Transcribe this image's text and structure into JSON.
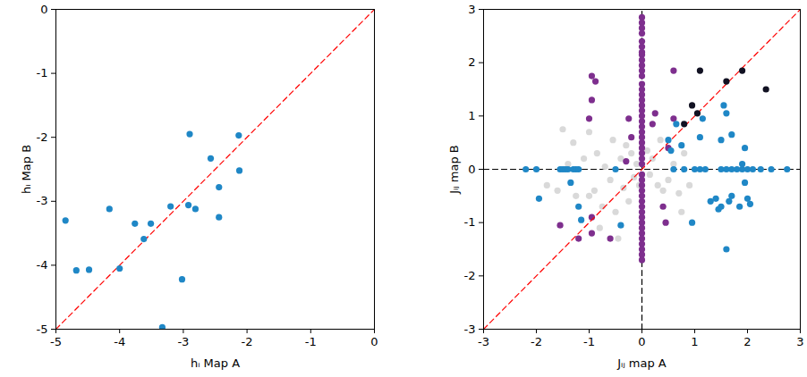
{
  "chart_data": [
    {
      "type": "scatter",
      "xlabel": "hᵢ Map A",
      "ylabel": "hᵢ Map B",
      "xlim": [
        -5,
        0
      ],
      "ylim": [
        -5,
        0
      ],
      "xticks": [
        -5,
        -4,
        -3,
        -2,
        -1,
        0
      ],
      "yticks": [
        -5,
        -4,
        -3,
        -2,
        -1,
        0
      ],
      "series": [
        {
          "type": "line",
          "color": "#ff0000",
          "line_style": "dashed",
          "x": [
            -5,
            0
          ],
          "y": [
            -5,
            0
          ]
        },
        {
          "type": "scatter",
          "color": "#1f87c6",
          "marker": "circle",
          "x": [
            -4.85,
            -4.68,
            -4.48,
            -4.16,
            -4.0,
            -3.76,
            -3.62,
            -3.51,
            -3.33,
            -3.2,
            -3.02,
            -2.92,
            -2.9,
            -2.81,
            -2.57,
            -2.44,
            -2.44,
            -2.13,
            -2.12
          ],
          "y": [
            -3.3,
            -4.08,
            -4.07,
            -3.12,
            -4.05,
            -3.35,
            -3.59,
            -3.35,
            -4.97,
            -3.08,
            -4.22,
            -3.06,
            -1.95,
            -3.12,
            -2.33,
            -2.78,
            -3.25,
            -1.97,
            -2.52
          ]
        }
      ]
    },
    {
      "type": "scatter",
      "xlabel": "Jᵢⱼ map A",
      "ylabel": "Jᵢⱼ map B",
      "xlim": [
        -3,
        3
      ],
      "ylim": [
        -3,
        3
      ],
      "xticks": [
        -3,
        -2,
        -1,
        0,
        1,
        2,
        3
      ],
      "yticks": [
        -3,
        -2,
        -1,
        0,
        1,
        2,
        3
      ],
      "series": [
        {
          "type": "line",
          "color": "#000000",
          "line_style": "dashed",
          "x": [
            -3,
            3
          ],
          "y": [
            0,
            0
          ]
        },
        {
          "type": "line",
          "color": "#000000",
          "line_style": "dashed",
          "x": [
            0,
            0
          ],
          "y": [
            -3,
            3
          ]
        },
        {
          "type": "scatter",
          "color": "#d9d9d9",
          "marker": "circle",
          "x": [
            -1.5,
            -1.6,
            -1.3,
            -1.25,
            -1.1,
            -1.0,
            -0.9,
            -0.85,
            -0.75,
            -0.7,
            -0.6,
            -0.55,
            -0.5,
            -0.4,
            -0.35,
            -0.3,
            -0.25,
            -0.2,
            -0.15,
            -0.1,
            -0.05,
            0.1,
            0.15,
            0.2,
            0.3,
            0.35,
            0.4,
            0.5,
            0.6,
            0.7,
            0.8,
            0.9,
            -1.4,
            -1.8,
            -0.8,
            -1.0,
            -0.45,
            0.75
          ],
          "y": [
            0.75,
            -0.4,
            0.5,
            -0.5,
            0.2,
            -0.5,
            -0.4,
            0.3,
            -0.7,
            0.05,
            -0.2,
            0.55,
            -0.8,
            0.2,
            -0.35,
            0.45,
            -0.6,
            0.3,
            -0.15,
            0.1,
            -0.3,
            0.35,
            -0.1,
            0.2,
            -0.3,
            0.55,
            -0.4,
            -0.2,
            0.1,
            -0.45,
            0.3,
            -0.3,
            0.1,
            -0.3,
            -1.1,
            0.7,
            -1.3,
            -0.8
          ]
        },
        {
          "type": "scatter",
          "color": "#7e2f8e",
          "marker": "circle",
          "x": [
            0,
            0,
            0,
            0,
            0,
            0,
            0,
            0,
            0,
            0,
            0,
            0,
            0,
            0,
            0,
            0,
            0,
            0,
            0,
            0,
            0,
            0,
            0,
            0,
            0,
            0,
            0,
            0,
            0,
            0,
            0,
            0,
            0,
            0,
            0,
            0,
            0,
            0,
            0,
            0,
            0,
            0,
            0,
            0,
            0,
            -0.95,
            -0.88,
            -0.95,
            -1.0,
            -0.95,
            -0.95,
            -0.6,
            -1.55,
            -1.2,
            -0.25,
            -0.2,
            -0.3,
            0.4,
            0.45,
            0.25,
            0.2,
            0.6,
            0.6,
            0.5
          ],
          "y": [
            2.85,
            2.75,
            2.65,
            2.55,
            2.4,
            2.3,
            2.2,
            2.15,
            2.05,
            1.95,
            1.85,
            1.75,
            1.6,
            1.5,
            1.4,
            1.3,
            1.2,
            1.1,
            1.0,
            0.9,
            0.8,
            0.7,
            0.6,
            0.5,
            0.4,
            0.3,
            0.2,
            0.1,
            -0.1,
            -0.2,
            -0.3,
            -0.4,
            -0.5,
            -0.6,
            -0.7,
            -0.8,
            -0.9,
            -1.0,
            -1.1,
            -1.2,
            -1.3,
            -1.4,
            -1.5,
            -1.6,
            -1.7,
            1.75,
            1.65,
            1.3,
            0.95,
            -0.9,
            -1.2,
            -1.3,
            -1.05,
            -1.3,
            0.95,
            0.6,
            0.15,
            -0.7,
            -1.0,
            1.05,
            0.85,
            1.85,
            0.95,
            0.4
          ]
        },
        {
          "type": "line",
          "color": "#ff0000",
          "line_style": "dashed",
          "x": [
            -3,
            3
          ],
          "y": [
            -3,
            3
          ]
        },
        {
          "type": "scatter",
          "color": "#1f87c6",
          "marker": "circle",
          "x": [
            -2.2,
            -2.0,
            -1.55,
            -1.5,
            -1.45,
            -1.4,
            -1.3,
            -1.25,
            -1.2,
            -0.5,
            0.6,
            0.8,
            1.0,
            1.1,
            1.2,
            1.5,
            1.6,
            1.7,
            1.8,
            1.9,
            2.0,
            2.1,
            2.25,
            2.45,
            2.75,
            -1.95,
            -1.35,
            -1.2,
            -1.15,
            -0.4,
            0.5,
            0.55,
            0.65,
            0.75,
            0.95,
            1.1,
            1.15,
            1.3,
            1.4,
            1.45,
            1.5,
            1.55,
            1.6,
            1.6,
            1.65,
            1.7,
            1.7,
            1.85,
            1.95,
            1.95,
            2.0,
            2.05,
            1.9,
            1.5
          ],
          "y": [
            0,
            0,
            0,
            0,
            0,
            0,
            0,
            0,
            0,
            0,
            0,
            0,
            0,
            0,
            0,
            0,
            0,
            0,
            0,
            0,
            0,
            0,
            0,
            0,
            0,
            -0.55,
            -0.25,
            -0.7,
            -0.95,
            -1.05,
            0.55,
            0.35,
            0.85,
            0.45,
            -1.0,
            0.6,
            0.95,
            -0.6,
            -0.55,
            -0.75,
            0.55,
            1.2,
            1.05,
            -1.5,
            -0.6,
            0.65,
            -0.5,
            -0.7,
            0.4,
            -0.25,
            -0.55,
            -0.65,
            0.1,
            -0.7
          ]
        },
        {
          "type": "scatter",
          "color": "#111122",
          "marker": "circle",
          "x": [
            0.8,
            0.95,
            1.05,
            1.1,
            1.6,
            1.9,
            2.35
          ],
          "y": [
            0.85,
            1.2,
            1.05,
            1.85,
            1.65,
            1.85,
            1.5
          ]
        }
      ]
    }
  ]
}
